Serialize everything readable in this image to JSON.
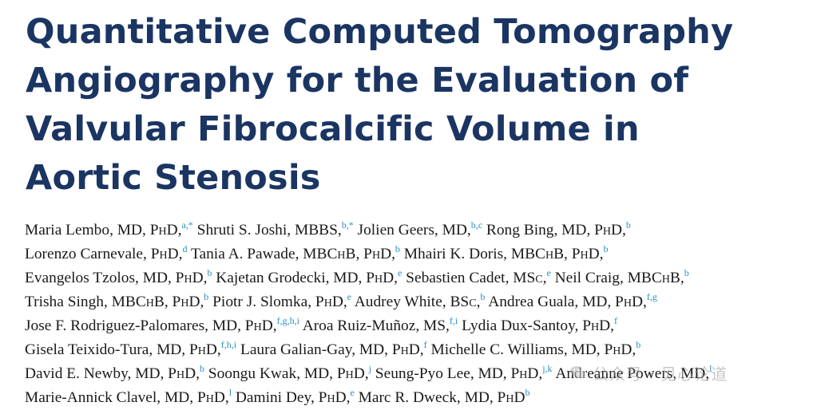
{
  "title": {
    "lines": [
      "Quantitative Computed Tomography",
      "Angiography for the Evaluation of",
      "Valvular Fibrocalcific Volume in",
      "Aortic Stenosis"
    ]
  },
  "author_lines": [
    [
      {
        "t": "Maria Lembo, MD, P"
      },
      {
        "t": "h",
        "sc": true
      },
      {
        "t": "D,"
      },
      {
        "s": "a,*"
      },
      {
        "t": " Shruti S. Joshi, MBBS,"
      },
      {
        "s": "b,*"
      },
      {
        "t": " Jolien Geers, MD,"
      },
      {
        "s": "b,c"
      },
      {
        "t": " Rong Bing, MD, P"
      },
      {
        "t": "h",
        "sc": true
      },
      {
        "t": "D,"
      },
      {
        "s": "b"
      }
    ],
    [
      {
        "t": "Lorenzo Carnevale, P"
      },
      {
        "t": "h",
        "sc": true
      },
      {
        "t": "D,"
      },
      {
        "s": "d"
      },
      {
        "t": " Tania A. Pawade, MBC"
      },
      {
        "t": "h",
        "sc": true
      },
      {
        "t": "B, P"
      },
      {
        "t": "h",
        "sc": true
      },
      {
        "t": "D,"
      },
      {
        "s": "b"
      },
      {
        "t": " Mhairi K. Doris, MBC"
      },
      {
        "t": "h",
        "sc": true
      },
      {
        "t": "B, P"
      },
      {
        "t": "h",
        "sc": true
      },
      {
        "t": "D,"
      },
      {
        "s": "b"
      }
    ],
    [
      {
        "t": "Evangelos Tzolos, MD, P"
      },
      {
        "t": "h",
        "sc": true
      },
      {
        "t": "D,"
      },
      {
        "s": "b"
      },
      {
        "t": " Kajetan Grodecki, MD, P"
      },
      {
        "t": "h",
        "sc": true
      },
      {
        "t": "D,"
      },
      {
        "s": "e"
      },
      {
        "t": " Sebastien Cadet, MS"
      },
      {
        "t": "c",
        "sc": true
      },
      {
        "t": ","
      },
      {
        "s": "e"
      },
      {
        "t": " Neil Craig, MBC"
      },
      {
        "t": "h",
        "sc": true
      },
      {
        "t": "B,"
      },
      {
        "s": "b"
      }
    ],
    [
      {
        "t": "Trisha Singh, MBC"
      },
      {
        "t": "h",
        "sc": true
      },
      {
        "t": "B, P"
      },
      {
        "t": "h",
        "sc": true
      },
      {
        "t": "D,"
      },
      {
        "s": "b"
      },
      {
        "t": " Piotr J. Slomka, P"
      },
      {
        "t": "h",
        "sc": true
      },
      {
        "t": "D,"
      },
      {
        "s": "e"
      },
      {
        "t": " Audrey White, BS"
      },
      {
        "t": "c",
        "sc": true
      },
      {
        "t": ","
      },
      {
        "s": "b"
      },
      {
        "t": " Andrea Guala, MD, P"
      },
      {
        "t": "h",
        "sc": true
      },
      {
        "t": "D,"
      },
      {
        "s": "f,g"
      }
    ],
    [
      {
        "t": "Jose F. Rodriguez-Palomares, MD, P"
      },
      {
        "t": "h",
        "sc": true
      },
      {
        "t": "D,"
      },
      {
        "s": "f,g,h,i"
      },
      {
        "t": " Aroa Ruiz-Muñoz, MS,"
      },
      {
        "s": "f,i"
      },
      {
        "t": " Lydia Dux-Santoy, P"
      },
      {
        "t": "h",
        "sc": true
      },
      {
        "t": "D,"
      },
      {
        "s": "f"
      }
    ],
    [
      {
        "t": "Gisela Teixido-Tura, MD, P"
      },
      {
        "t": "h",
        "sc": true
      },
      {
        "t": "D,"
      },
      {
        "s": "f,h,i"
      },
      {
        "t": " Laura Galian-Gay, MD, P"
      },
      {
        "t": "h",
        "sc": true
      },
      {
        "t": "D,"
      },
      {
        "s": "f"
      },
      {
        "t": " Michelle C. Williams, MD, P"
      },
      {
        "t": "h",
        "sc": true
      },
      {
        "t": "D,"
      },
      {
        "s": "b"
      }
    ],
    [
      {
        "t": "David E. Newby, MD, P"
      },
      {
        "t": "h",
        "sc": true
      },
      {
        "t": "D,"
      },
      {
        "s": "b"
      },
      {
        "t": " Soongu Kwak, MD, P"
      },
      {
        "t": "h",
        "sc": true
      },
      {
        "t": "D,"
      },
      {
        "s": "j"
      },
      {
        "t": " Seung-Pyo Lee, MD, P"
      },
      {
        "t": "h",
        "sc": true
      },
      {
        "t": "D,"
      },
      {
        "s": "j,k"
      },
      {
        "t": " Andreanne Powers, MD,"
      },
      {
        "s": "l"
      }
    ],
    [
      {
        "t": "Marie-Annick Clavel, MD, P"
      },
      {
        "t": "h",
        "sc": true
      },
      {
        "t": "D,"
      },
      {
        "s": "l"
      },
      {
        "t": " Damini Dey, P"
      },
      {
        "t": "h",
        "sc": true
      },
      {
        "t": "D,"
      },
      {
        "s": "e"
      },
      {
        "t": " Marc R. Dweck, MD, P"
      },
      {
        "t": "h",
        "sc": true
      },
      {
        "t": "D"
      },
      {
        "s": "b"
      }
    ]
  ],
  "watermark": {
    "text": "公众号 · 见心论道",
    "icon": "wechat-icon"
  },
  "colors": {
    "title": "#1b3563",
    "body_text": "#1a1a1a",
    "affiliation_superscript": "#2a8ec4",
    "watermark": "#9a9a9a"
  }
}
